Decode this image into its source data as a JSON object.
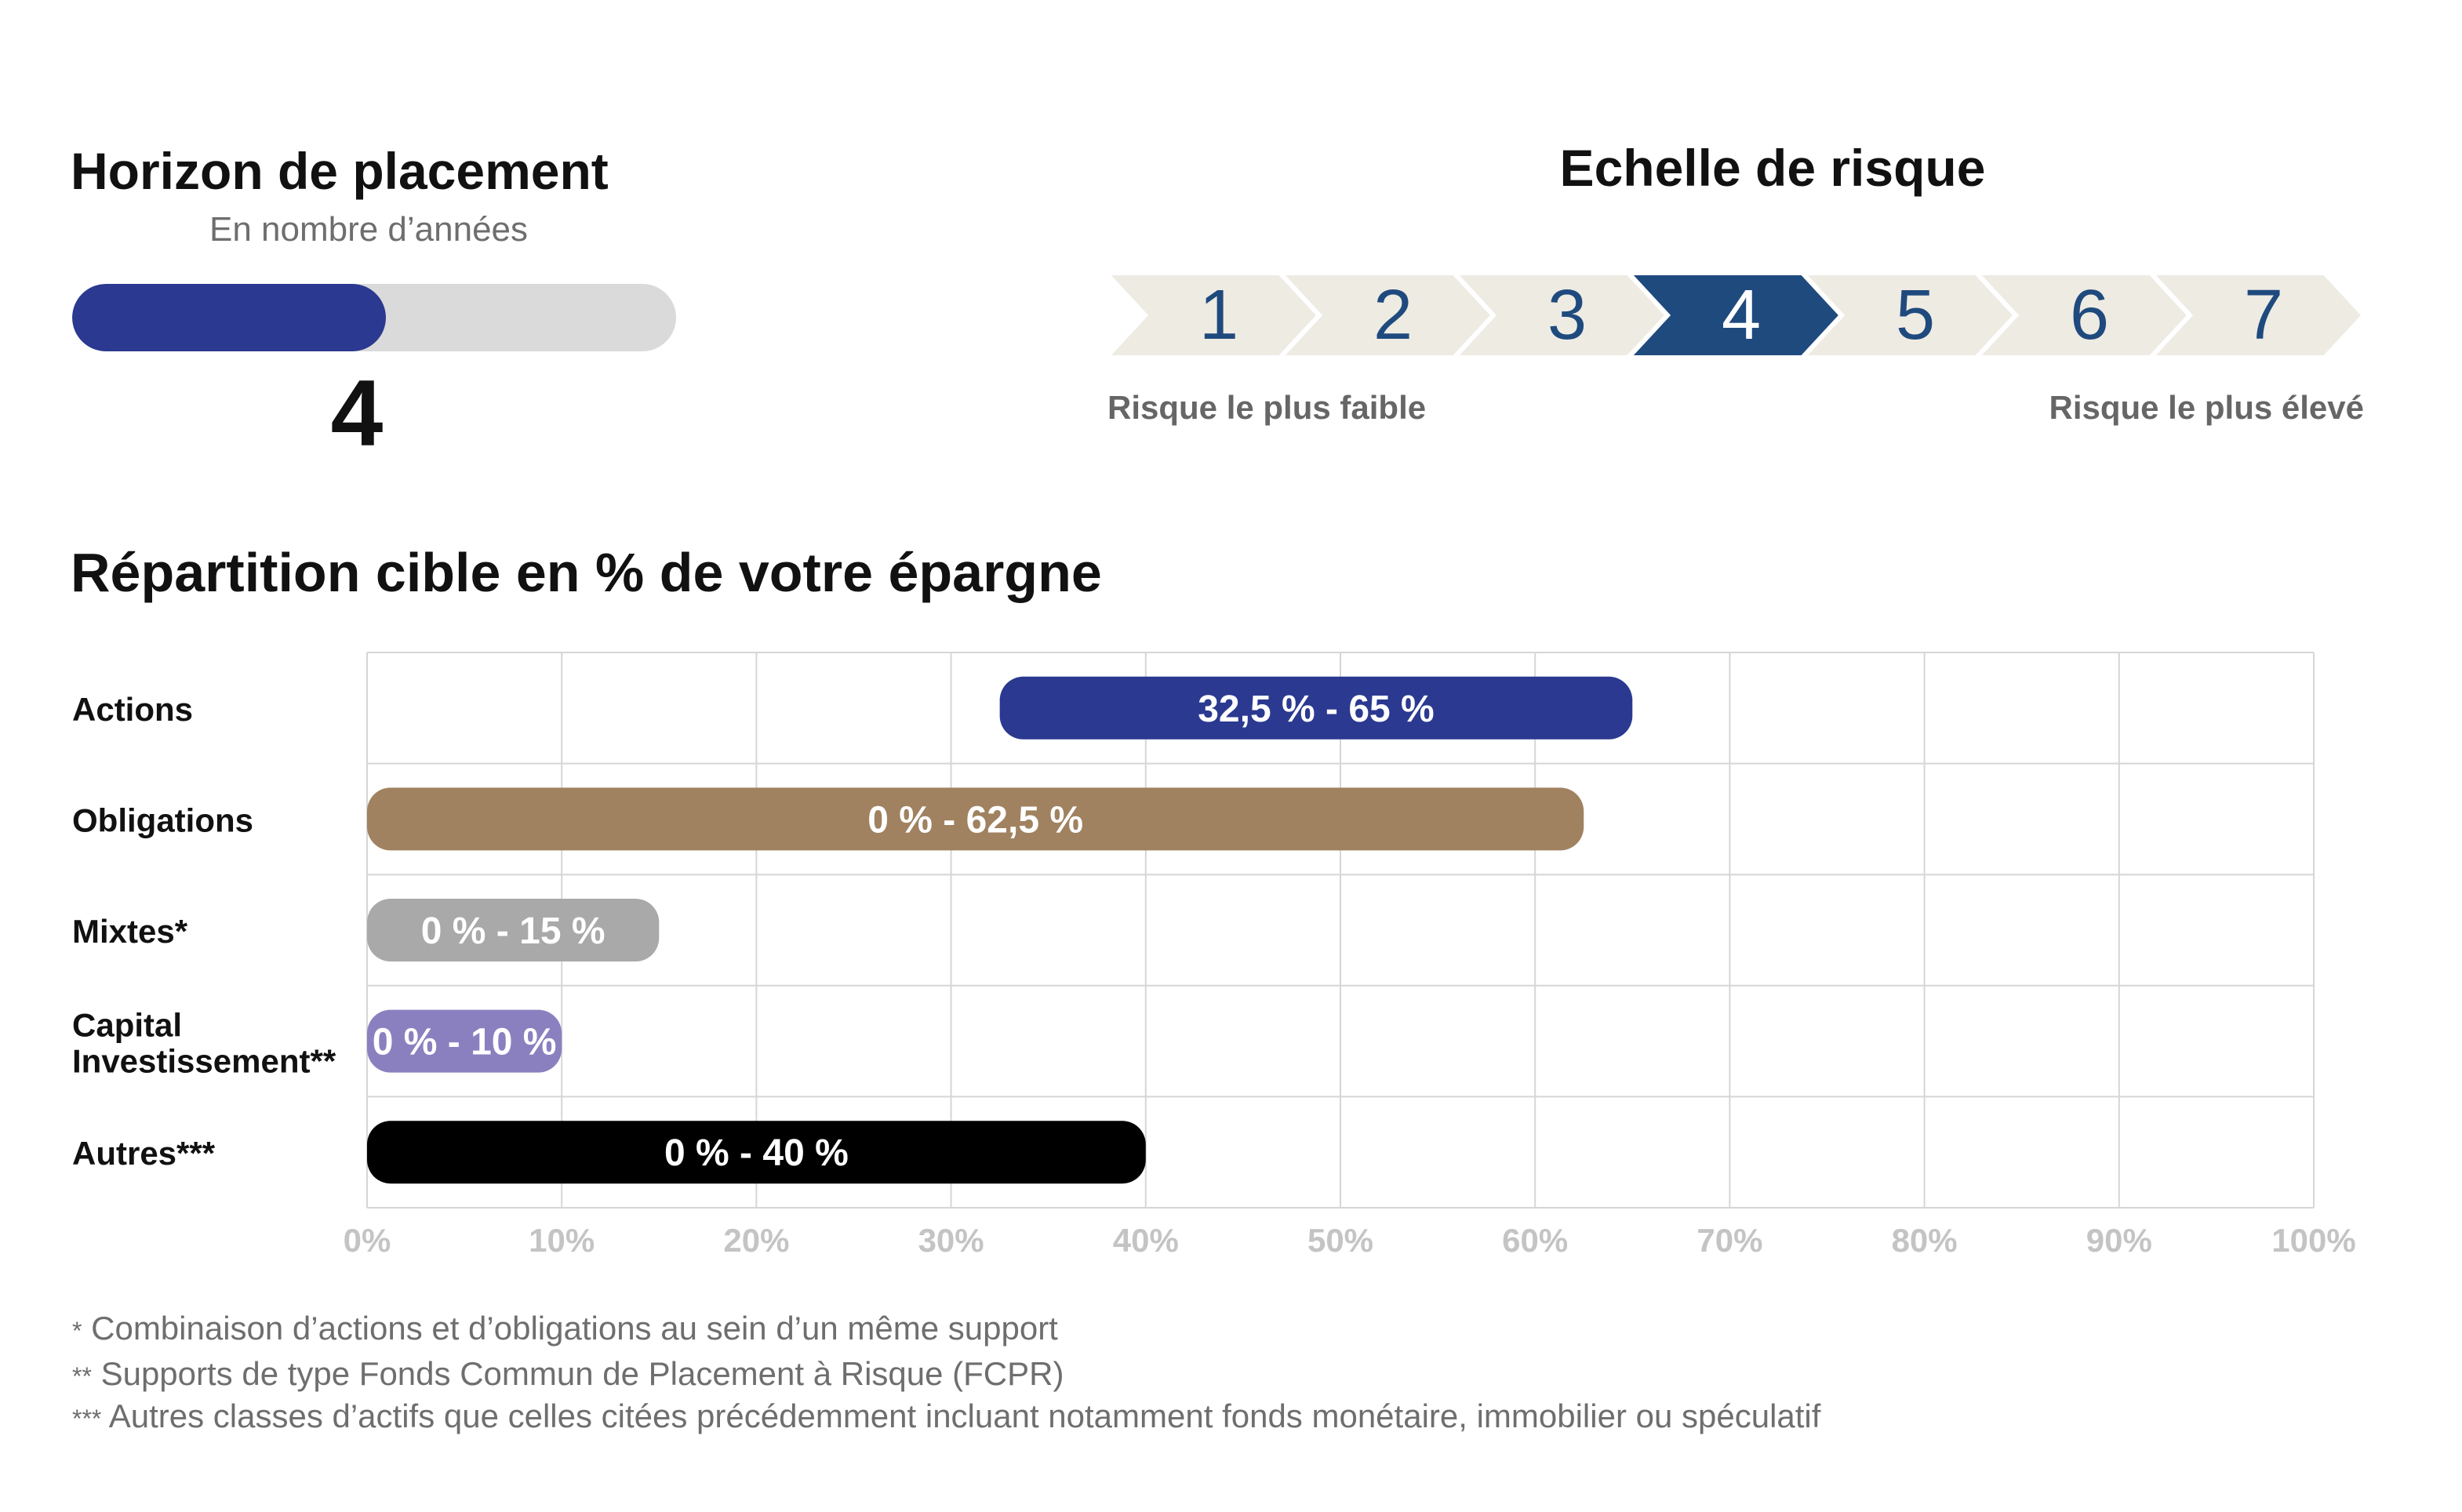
{
  "horizon": {
    "title": "Horizon de placement",
    "subtitle": "En nombre d’années",
    "value": "4",
    "progress": 0.52,
    "fill_color": "#2b3990",
    "track_color": "#dadada"
  },
  "risk": {
    "title": "Echelle de risque",
    "levels": [
      "1",
      "2",
      "3",
      "4",
      "5",
      "6",
      "7"
    ],
    "selected": 4,
    "selected_color": "#1f4a7e",
    "unselected_color": "#eeebe3",
    "number_color": "#1f4a7e",
    "low_label": "Risque le plus faible",
    "high_label": "Risque le plus élevé"
  },
  "allocation_title": "Répartition cible en % de votre épargne",
  "chart_data": {
    "type": "bar",
    "orientation": "horizontal-range",
    "xlim": [
      0,
      100
    ],
    "x_ticks": [
      "0%",
      "10%",
      "20%",
      "30%",
      "40%",
      "50%",
      "60%",
      "70%",
      "80%",
      "90%",
      "100%"
    ],
    "grid": true,
    "series": [
      {
        "name": "Actions",
        "label": "32,5 % - 65 %",
        "min": 32.5,
        "max": 65,
        "color": "#2b3990"
      },
      {
        "name": "Obligations",
        "label": "0 % - 62,5 %",
        "min": 0,
        "max": 62.5,
        "color": "#a08260"
      },
      {
        "name": "Mixtes*",
        "label": "0 % - 15 %",
        "min": 0,
        "max": 15,
        "color": "#a9a9a9"
      },
      {
        "name": "Capital Investissement**",
        "label": "0 % - 10 %",
        "min": 0,
        "max": 10,
        "color": "#8b80bf"
      },
      {
        "name": "Autres***",
        "label": "0 % - 40 %",
        "min": 0,
        "max": 40,
        "color": "#000000"
      }
    ]
  },
  "footnotes": [
    {
      "stars": "*",
      "text": "Combinaison d’actions et d’obligations au sein d’un même support"
    },
    {
      "stars": "**",
      "text": "Supports de type Fonds Commun de Placement à Risque (FCPR)"
    },
    {
      "stars": "***",
      "text": "Autres classes d’actifs que celles citées précédemment incluant notamment fonds monétaire, immobilier ou spéculatif"
    }
  ]
}
